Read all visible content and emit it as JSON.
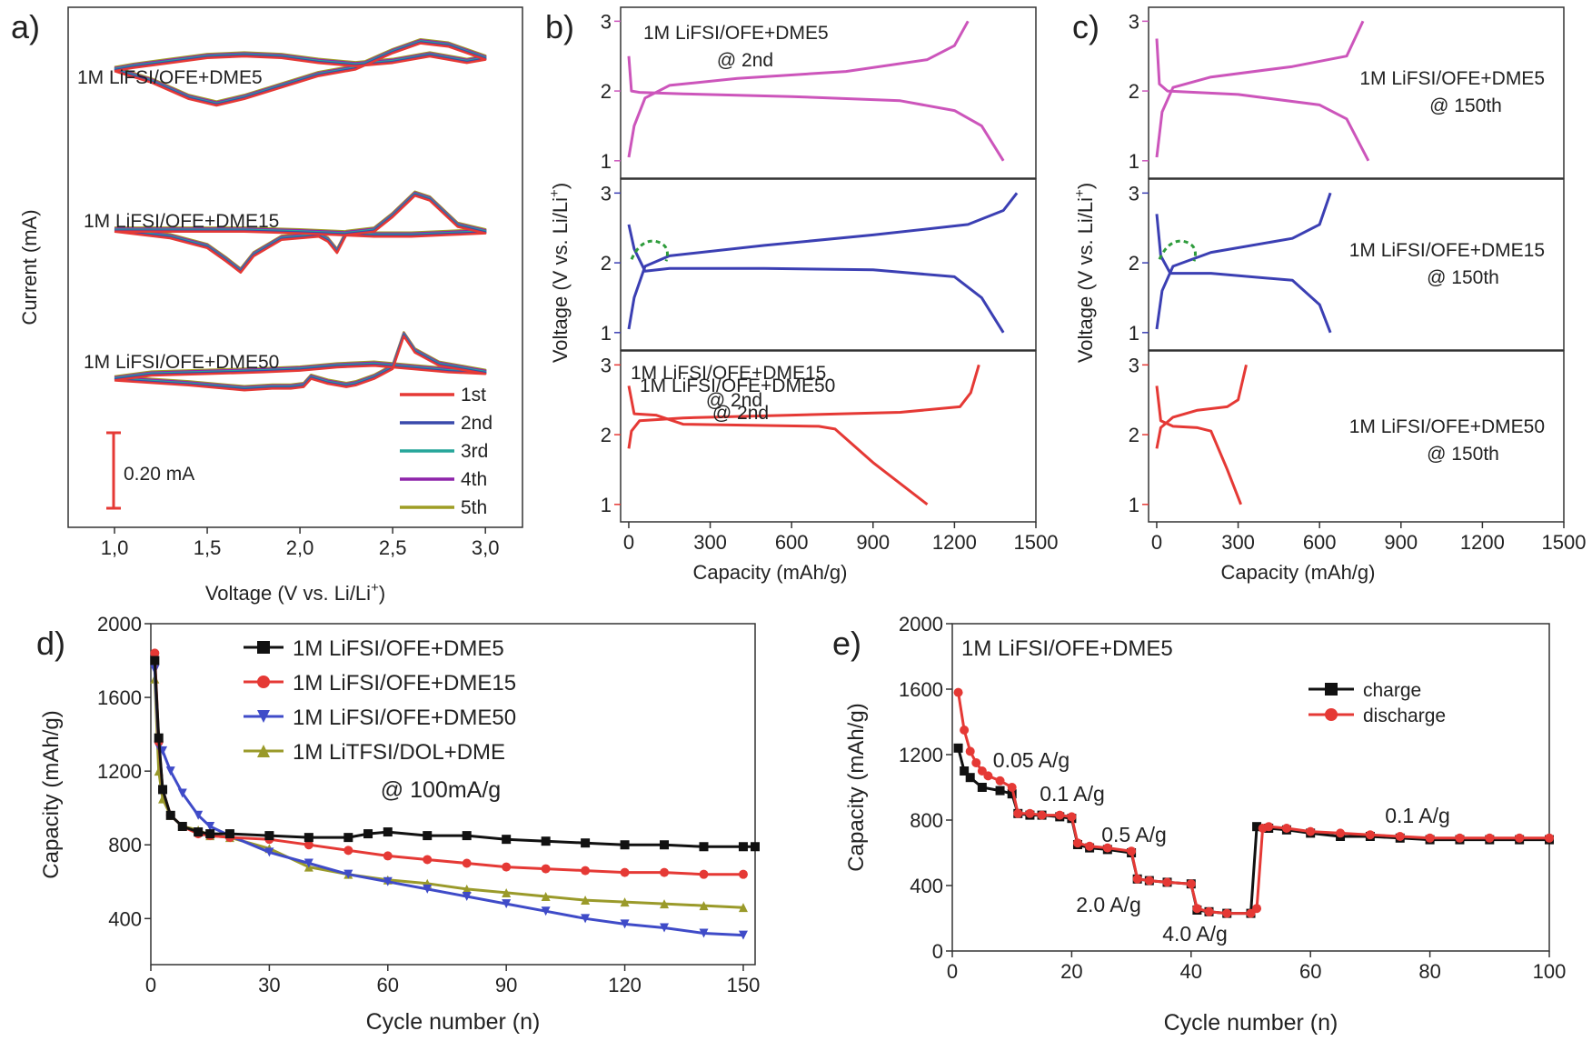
{
  "colors": {
    "cycle_1st": "#e53935",
    "cycle_2nd": "#3949ab",
    "cycle_3rd": "#26a69a",
    "cycle_4th": "#8e24aa",
    "cycle_5th": "#9e9d24",
    "dme5_b": "#cc55bb",
    "dme15_b": "#3b3fb3",
    "dme50_b": "#e53935",
    "d_dme5": "#111111",
    "d_dme15": "#e53935",
    "d_dme50": "#3f4bc8",
    "d_dol": "#9a9a2a",
    "d_annot": "#2e9c3c",
    "e_charge": "#111111",
    "e_discharge": "#e53935",
    "axis": "#222222"
  },
  "chart_data": [
    {
      "panel": "a)",
      "type": "line",
      "ylabel": "Current (mA)",
      "xlabel": "Voltage (V vs. Li/Li+)",
      "xlabel_main": "Voltage (V vs. Li/Li",
      "xlabel_sup": "+",
      "xlabel_close": ")",
      "xlim": [
        0.75,
        3.2
      ],
      "xticks": [
        "1,0",
        "1,5",
        "2,0",
        "2,5",
        "3,0"
      ],
      "xtick_values": [
        1.0,
        1.5,
        2.0,
        2.5,
        3.0
      ],
      "scale_bar": "0.20 mA",
      "legend": [
        "1st",
        "2nd",
        "3rd",
        "4th",
        "5th"
      ],
      "curves": [
        {
          "label": "1M LiFSI/OFE+DME5",
          "x": [
            1.0,
            1.2,
            1.4,
            1.55,
            1.7,
            1.9,
            2.1,
            2.3,
            2.5,
            2.65,
            2.8,
            3.0,
            2.9,
            2.7,
            2.5,
            2.3,
            2.1,
            1.9,
            1.7,
            1.5,
            1.3,
            1.1,
            1.0
          ],
          "y": [
            0.05,
            -0.02,
            -0.12,
            -0.16,
            -0.12,
            -0.05,
            0.02,
            0.06,
            0.16,
            0.22,
            0.2,
            0.12,
            0.1,
            0.14,
            0.1,
            0.08,
            0.1,
            0.13,
            0.14,
            0.13,
            0.1,
            0.07,
            0.05
          ]
        },
        {
          "label": "1M LiFSI/OFE+DME15",
          "x": [
            1.0,
            1.3,
            1.5,
            1.6,
            1.68,
            1.75,
            1.9,
            2.1,
            2.15,
            2.2,
            2.25,
            2.4,
            2.5,
            2.62,
            2.7,
            2.85,
            3.0,
            2.8,
            2.6,
            2.4,
            2.2,
            2.0,
            1.7,
            1.4,
            1.2,
            1.0
          ],
          "y": [
            0.03,
            -0.01,
            -0.07,
            -0.15,
            -0.22,
            -0.12,
            -0.02,
            0.0,
            -0.03,
            -0.1,
            0.01,
            0.03,
            0.12,
            0.25,
            0.22,
            0.06,
            0.02,
            0.01,
            0.0,
            0.0,
            0.01,
            0.02,
            0.03,
            0.03,
            0.03,
            0.03
          ]
        },
        {
          "label": "1M LiFSI/OFE+DME50",
          "x": [
            1.0,
            1.4,
            1.7,
            1.85,
            1.95,
            2.02,
            2.06,
            2.15,
            2.25,
            2.3,
            2.4,
            2.5,
            2.56,
            2.62,
            2.75,
            3.0,
            2.8,
            2.6,
            2.4,
            2.2,
            2.0,
            1.8,
            1.5,
            1.2,
            1.0
          ],
          "y": [
            0.01,
            -0.02,
            -0.05,
            -0.04,
            -0.04,
            -0.03,
            0.02,
            -0.01,
            -0.03,
            -0.02,
            0.02,
            0.08,
            0.28,
            0.18,
            0.1,
            0.05,
            0.06,
            0.08,
            0.1,
            0.09,
            0.07,
            0.06,
            0.05,
            0.04,
            0.01
          ]
        }
      ]
    },
    {
      "panel": "b)",
      "type": "line",
      "ylabel_main": "Voltage (V vs. Li/Li",
      "ylabel_sup": "+",
      "ylabel_close": ")",
      "xlabel": "Capacity (mAh/g)",
      "xlim": [
        -30,
        1500
      ],
      "xticks": [
        0,
        300,
        600,
        900,
        1200,
        1500
      ],
      "yticks": [
        1,
        2,
        3
      ],
      "subplots": [
        {
          "label": "1M LiFSI/OFE+DME5",
          "cycle": "@ 2nd",
          "discharge": {
            "x": [
              0,
              10,
              40,
              200,
              600,
              1000,
              1200,
              1300,
              1380
            ],
            "y": [
              2.5,
              2.0,
              1.98,
              1.96,
              1.92,
              1.86,
              1.72,
              1.5,
              1.0
            ]
          },
          "charge": {
            "x": [
              0,
              20,
              60,
              150,
              400,
              800,
              1100,
              1200,
              1250
            ],
            "y": [
              1.05,
              1.5,
              1.9,
              2.08,
              2.18,
              2.28,
              2.45,
              2.65,
              3.0
            ]
          }
        },
        {
          "label": "1M LiFSI/OFE+DME15",
          "cycle": "@ 2nd",
          "discharge": {
            "x": [
              0,
              20,
              60,
              150,
              500,
              900,
              1200,
              1300,
              1380
            ],
            "y": [
              2.55,
              2.2,
              1.88,
              1.92,
              1.92,
              1.9,
              1.8,
              1.5,
              1.0
            ]
          },
          "charge": {
            "x": [
              0,
              20,
              60,
              150,
              500,
              900,
              1250,
              1380,
              1430
            ],
            "y": [
              1.05,
              1.5,
              1.95,
              2.1,
              2.25,
              2.4,
              2.55,
              2.75,
              3.0
            ]
          }
        },
        {
          "label": "1M LiFSI/OFE+DME50",
          "cycle": "@ 2nd",
          "discharge": {
            "x": [
              0,
              20,
              100,
              200,
              700,
              760,
              900,
              1100
            ],
            "y": [
              2.7,
              2.3,
              2.28,
              2.15,
              2.12,
              2.08,
              1.6,
              1.0
            ]
          },
          "charge": {
            "x": [
              0,
              10,
              40,
              200,
              600,
              1000,
              1220,
              1260,
              1290
            ],
            "y": [
              1.8,
              2.05,
              2.2,
              2.24,
              2.28,
              2.32,
              2.4,
              2.6,
              3.0
            ]
          }
        }
      ]
    },
    {
      "panel": "c)",
      "type": "line",
      "ylabel_main": "Voltage (V vs. Li/Li",
      "ylabel_sup": "+",
      "ylabel_close": ")",
      "xlabel": "Capacity (mAh/g)",
      "xlim": [
        -30,
        1500
      ],
      "xticks": [
        0,
        300,
        600,
        900,
        1200,
        1500
      ],
      "yticks": [
        1,
        2,
        3
      ],
      "subplots": [
        {
          "label": "1M LiFSI/OFE+DME5",
          "cycle": "@ 150th",
          "discharge": {
            "x": [
              0,
              10,
              40,
              300,
              600,
              700,
              780
            ],
            "y": [
              2.75,
              2.1,
              2.0,
              1.95,
              1.8,
              1.6,
              1.0
            ]
          },
          "charge": {
            "x": [
              0,
              20,
              60,
              200,
              500,
              700,
              760
            ],
            "y": [
              1.05,
              1.7,
              2.05,
              2.2,
              2.35,
              2.5,
              3.0
            ]
          }
        },
        {
          "label": "1M LiFSI/OFE+DME15",
          "cycle": "@ 150th",
          "discharge": {
            "x": [
              0,
              15,
              50,
              200,
              500,
              600,
              640
            ],
            "y": [
              2.7,
              2.1,
              1.85,
              1.85,
              1.75,
              1.4,
              1.0
            ]
          },
          "charge": {
            "x": [
              0,
              20,
              60,
              200,
              500,
              600,
              640
            ],
            "y": [
              1.05,
              1.6,
              1.95,
              2.15,
              2.35,
              2.55,
              3.0
            ]
          }
        },
        {
          "label": "1M LiFSI/OFE+DME50",
          "cycle": "@ 150th",
          "discharge": {
            "x": [
              0,
              15,
              60,
              150,
              200,
              260,
              310
            ],
            "y": [
              2.7,
              2.2,
              2.12,
              2.1,
              2.05,
              1.5,
              1.0
            ]
          },
          "charge": {
            "x": [
              0,
              15,
              60,
              150,
              260,
              300,
              330
            ],
            "y": [
              1.8,
              2.1,
              2.25,
              2.35,
              2.4,
              2.5,
              3.0
            ]
          }
        }
      ]
    },
    {
      "panel": "d)",
      "type": "line",
      "ylabel": "Capacity (mAh/g)",
      "xlabel": "Cycle number (n)",
      "xlim": [
        0,
        153
      ],
      "ylim": [
        150,
        2000
      ],
      "xticks": [
        0,
        30,
        60,
        90,
        120,
        150
      ],
      "yticks": [
        400,
        800,
        1200,
        1600,
        2000
      ],
      "annotation": "@ 100mA/g",
      "series": [
        {
          "name": "1M LiFSI/OFE+DME5",
          "marker": "square",
          "x": [
            1,
            2,
            3,
            5,
            8,
            12,
            15,
            20,
            30,
            40,
            50,
            55,
            60,
            70,
            80,
            90,
            100,
            110,
            120,
            130,
            140,
            150,
            153
          ],
          "y": [
            1800,
            1380,
            1100,
            960,
            900,
            870,
            860,
            860,
            850,
            840,
            840,
            860,
            870,
            850,
            850,
            830,
            820,
            810,
            800,
            800,
            790,
            790,
            790
          ]
        },
        {
          "name": "1M LiFSI/OFE+DME15",
          "marker": "circle",
          "x": [
            1,
            2,
            3,
            5,
            8,
            12,
            15,
            20,
            30,
            40,
            50,
            60,
            70,
            80,
            90,
            100,
            110,
            120,
            130,
            140,
            150
          ],
          "y": [
            1840,
            1360,
            1100,
            960,
            900,
            860,
            850,
            840,
            830,
            800,
            770,
            740,
            720,
            700,
            680,
            670,
            660,
            650,
            650,
            640,
            640
          ]
        },
        {
          "name": "1M LiFSI/OFE+DME50",
          "marker": "triangle-down",
          "x": [
            1,
            2,
            3,
            5,
            8,
            12,
            15,
            20,
            30,
            40,
            50,
            60,
            70,
            80,
            90,
            100,
            110,
            120,
            130,
            140,
            150
          ],
          "y": [
            1750,
            1330,
            1310,
            1200,
            1080,
            960,
            900,
            850,
            760,
            700,
            640,
            600,
            560,
            520,
            480,
            440,
            400,
            370,
            350,
            320,
            310
          ]
        },
        {
          "name": "1M LiTFSI/DOL+DME",
          "marker": "triangle-up",
          "x": [
            1,
            2,
            3,
            5,
            8,
            12,
            15,
            20,
            30,
            40,
            50,
            60,
            70,
            80,
            90,
            100,
            110,
            120,
            130,
            140,
            150
          ],
          "y": [
            1700,
            1200,
            1050,
            960,
            900,
            880,
            850,
            840,
            780,
            680,
            640,
            610,
            590,
            560,
            540,
            520,
            500,
            490,
            480,
            470,
            460
          ]
        }
      ]
    },
    {
      "panel": "e)",
      "type": "line",
      "title": "1M LiFSI/OFE+DME5",
      "ylabel": "Capacity (mAh/g)",
      "xlabel": "Cycle number (n)",
      "xlim": [
        0,
        100
      ],
      "ylim": [
        0,
        2000
      ],
      "xticks": [
        0,
        20,
        40,
        60,
        80,
        100
      ],
      "yticks": [
        0,
        400,
        800,
        1200,
        1600,
        2000
      ],
      "rate_labels": [
        "0.05 A/g",
        "0.1 A/g",
        "0.5 A/g",
        "2.0 A/g",
        "4.0 A/g",
        "0.1 A/g"
      ],
      "series": [
        {
          "name": "charge",
          "marker": "square",
          "x": [
            1,
            2,
            3,
            5,
            8,
            10,
            11,
            13,
            15,
            18,
            20,
            21,
            23,
            26,
            30,
            31,
            33,
            36,
            40,
            41,
            43,
            46,
            50,
            51,
            53,
            56,
            60,
            65,
            70,
            75,
            80,
            85,
            90,
            95,
            100
          ],
          "y": [
            1240,
            1100,
            1060,
            1000,
            980,
            960,
            840,
            830,
            830,
            820,
            810,
            650,
            630,
            620,
            600,
            440,
            430,
            420,
            410,
            250,
            240,
            230,
            230,
            760,
            750,
            740,
            720,
            700,
            700,
            690,
            680,
            680,
            680,
            680,
            680
          ]
        },
        {
          "name": "discharge",
          "marker": "circle",
          "x": [
            1,
            2,
            3,
            4,
            5,
            6,
            8,
            10,
            11,
            13,
            15,
            18,
            20,
            21,
            23,
            26,
            30,
            31,
            33,
            36,
            40,
            41,
            43,
            46,
            50,
            51,
            52,
            53,
            56,
            60,
            65,
            70,
            75,
            80,
            85,
            90,
            95,
            100
          ],
          "y": [
            1580,
            1350,
            1220,
            1150,
            1100,
            1070,
            1040,
            1000,
            840,
            840,
            830,
            830,
            820,
            660,
            640,
            630,
            610,
            440,
            430,
            420,
            410,
            260,
            240,
            230,
            230,
            260,
            750,
            760,
            750,
            730,
            720,
            710,
            700,
            690,
            690,
            690,
            690,
            690
          ]
        }
      ]
    }
  ]
}
